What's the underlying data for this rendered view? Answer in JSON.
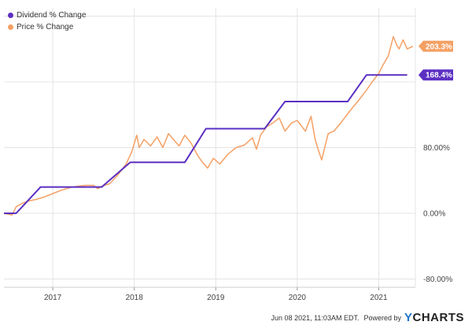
{
  "chart_data": {
    "type": "line",
    "x_tick_labels": [
      "2017",
      "2018",
      "2019",
      "2020",
      "2021"
    ],
    "x_tick_positions": [
      2017,
      2018,
      2019,
      2020,
      2021
    ],
    "xlim": [
      2016.4,
      2021.45
    ],
    "y_tick_labels": [
      "80.00%",
      "0.00%",
      "-80.00%"
    ],
    "y_tick_values": [
      80,
      0,
      -80
    ],
    "y_gridlines": [
      240,
      160,
      80,
      0,
      -80
    ],
    "ylim": [
      -90,
      250
    ],
    "grid": true,
    "legend_position": "top-left",
    "series": [
      {
        "name": "Dividend % Change",
        "color": "#5b2fc2",
        "end_label": "168.4%",
        "x": [
          2016.4,
          2016.55,
          2016.85,
          2017.6,
          2017.95,
          2018.62,
          2018.88,
          2019.6,
          2019.85,
          2020.62,
          2020.85,
          2021.35
        ],
        "y": [
          0,
          0,
          32,
          32,
          62,
          62,
          103,
          103,
          136,
          136,
          168.4,
          168.4
        ]
      },
      {
        "name": "Price % Change",
        "color": "#f5a064",
        "end_label": "203.3%",
        "x": [
          2016.4,
          2016.5,
          2016.55,
          2016.62,
          2016.7,
          2016.8,
          2016.9,
          2017.0,
          2017.1,
          2017.2,
          2017.3,
          2017.4,
          2017.5,
          2017.55,
          2017.6,
          2017.7,
          2017.8,
          2017.9,
          2017.97,
          2018.03,
          2018.06,
          2018.12,
          2018.2,
          2018.28,
          2018.35,
          2018.42,
          2018.48,
          2018.55,
          2018.62,
          2018.7,
          2018.78,
          2018.83,
          2018.9,
          2018.97,
          2019.05,
          2019.15,
          2019.25,
          2019.35,
          2019.45,
          2019.5,
          2019.55,
          2019.62,
          2019.7,
          2019.78,
          2019.85,
          2019.93,
          2020.0,
          2020.1,
          2020.17,
          2020.22,
          2020.25,
          2020.3,
          2020.38,
          2020.45,
          2020.55,
          2020.65,
          2020.75,
          2020.85,
          2020.92,
          2021.0,
          2021.05,
          2021.12,
          2021.18,
          2021.22,
          2021.25,
          2021.3,
          2021.35,
          2021.42
        ],
        "y": [
          0,
          -2,
          8,
          12,
          15,
          17,
          20,
          24,
          28,
          31,
          33,
          34,
          34,
          30,
          33,
          36,
          47,
          60,
          75,
          95,
          80,
          90,
          82,
          93,
          80,
          97,
          90,
          82,
          95,
          85,
          70,
          63,
          55,
          67,
          60,
          72,
          80,
          83,
          92,
          78,
          95,
          105,
          110,
          116,
          100,
          110,
          113,
          100,
          118,
          90,
          80,
          65,
          97,
          100,
          112,
          125,
          137,
          150,
          160,
          170,
          180,
          192,
          215,
          205,
          200,
          211,
          200,
          203.3
        ]
      }
    ]
  },
  "footer": {
    "timestamp": "Jun 08 2021, 11:03AM EDT.",
    "powered_by": "Powered by",
    "brand_y": "Y",
    "brand_rest": "CHARTS"
  }
}
